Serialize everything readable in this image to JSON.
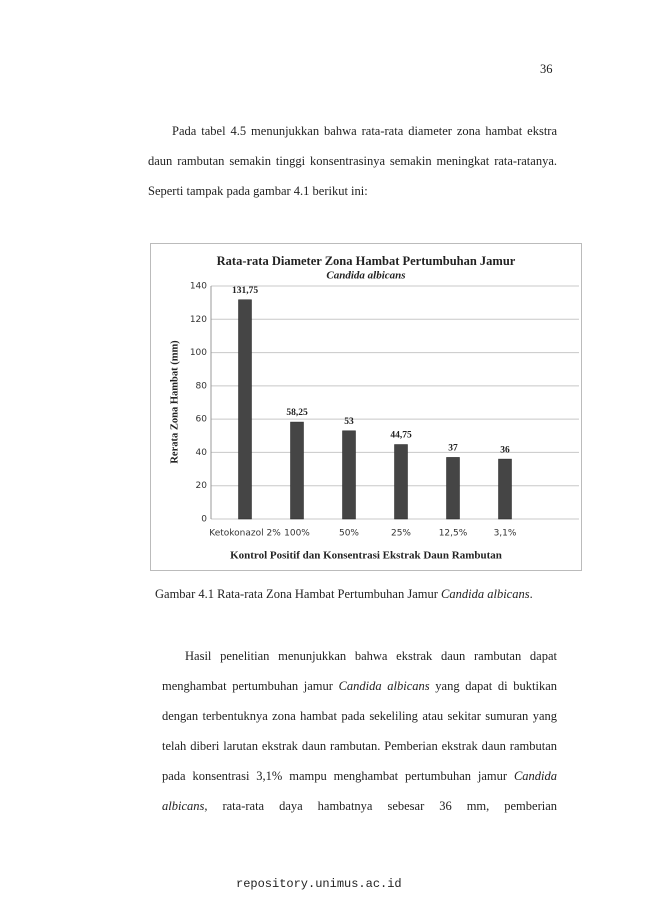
{
  "page_number": "36",
  "paragraphs": [
    [
      "Pada tabel 4.5 menunjukkan bahwa rata-rata diameter zona hambat ekstra daun rambutan semakin tinggi konsentrasinya semakin meningkat rata-ratanya. Seperti tampak pada gambar 4.1 berikut ini:"
    ],
    [
      "Hasil penelitian menunjukkan bahwa ekstrak daun rambutan dapat menghambat pertumbuhan jamur ",
      "Candida albicans",
      " yang dapat di buktikan dengan terbentuknya zona hambat pada sekeliling atau sekitar sumuran yang telah diberi larutan ekstrak daun rambutan. Pemberian ekstrak daun rambutan pada konsentrasi 3,1% mampu menghambat pertumbuhan jamur ",
      "Candida albicans",
      ", rata-rata daya hambatnya sebesar 36 mm, pemberian"
    ]
  ],
  "chart_data": {
    "type": "bar",
    "title": "Rata-rata Diameter Zona Hambat Pertumbuhan Jamur",
    "subtitle": "Candida albicans",
    "x_label": "Kontrol Positif dan Konsentrasi Ekstrak Daun Rambutan",
    "y_label": "Rerata Zona Hambat (mm)",
    "categories": [
      "Ketokonazol 2%",
      "100%",
      "50%",
      "25%",
      "12,5%",
      "3,1%"
    ],
    "values": [
      131.75,
      58.25,
      53,
      44.75,
      37,
      36
    ],
    "value_labels": [
      "131,75",
      "58,25",
      "53",
      "44,75",
      "37",
      "36"
    ],
    "color": "#454545",
    "ylim": [
      0,
      140
    ],
    "yticks": [
      0,
      20,
      40,
      60,
      80,
      100,
      120,
      140
    ],
    "grid": true
  },
  "caption": [
    "Gambar 4.1 Rata-rata Zona Hambat Pertumbuhan Jamur ",
    "Candida albicans",
    "."
  ],
  "footer": "repository.unimus.ac.id"
}
